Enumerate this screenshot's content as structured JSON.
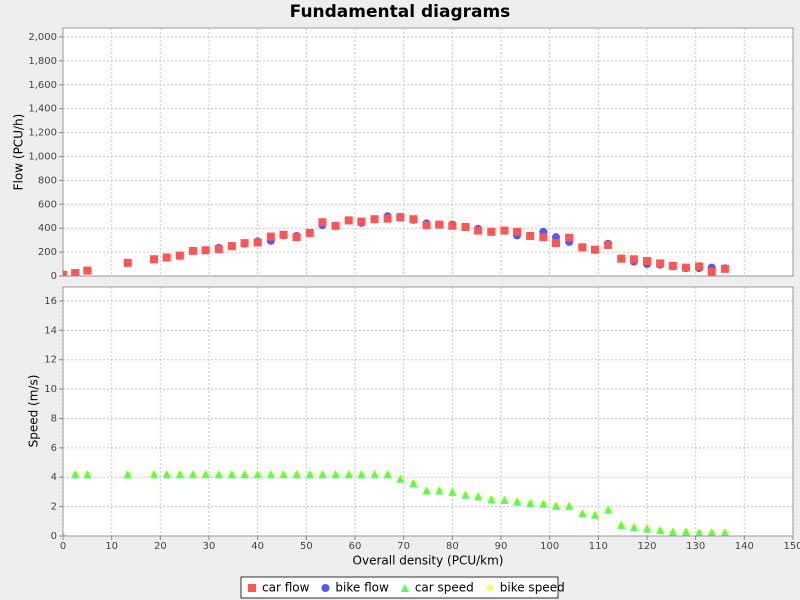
{
  "chart_data": [
    {
      "type": "scatter",
      "title": "Fundamental diagrams",
      "ylabel": "Flow (PCU/h)",
      "x": [
        0,
        2.5,
        5,
        13.3,
        18.7,
        21.3,
        24,
        26.7,
        29.3,
        32,
        34.7,
        37.3,
        40,
        42.7,
        45.3,
        48,
        50.7,
        53.3,
        56,
        58.7,
        61.3,
        64,
        66.7,
        69.3,
        72,
        74.7,
        77.3,
        80,
        82.7,
        85.3,
        88,
        90.7,
        93.3,
        96,
        98.7,
        101.3,
        104,
        106.7,
        109.3,
        112,
        114.7,
        117.3,
        120,
        122.7,
        125.3,
        128,
        130.7,
        133.3,
        136
      ],
      "xlim": [
        0,
        150
      ],
      "ylim": [
        0,
        2075
      ],
      "yticks": [
        0,
        200,
        400,
        600,
        800,
        {
          "value": 1000,
          "label": "1,000"
        },
        {
          "value": 1200,
          "label": "1,200"
        },
        {
          "value": 1400,
          "label": "1,400"
        },
        {
          "value": 1600,
          "label": "1,600"
        },
        {
          "value": 1800,
          "label": "1,800"
        },
        {
          "value": 2000,
          "label": "2,000"
        }
      ],
      "grid": true,
      "series": [
        {
          "name": "car flow",
          "color": "#ff5555",
          "marker": "square",
          "values": [
            10,
            25,
            45,
            110,
            140,
            155,
            170,
            210,
            215,
            225,
            250,
            275,
            280,
            330,
            345,
            325,
            360,
            450,
            420,
            465,
            455,
            475,
            480,
            490,
            475,
            425,
            430,
            420,
            410,
            380,
            370,
            380,
            370,
            335,
            325,
            275,
            320,
            240,
            220,
            260,
            145,
            140,
            125,
            105,
            85,
            70,
            80,
            35,
            60
          ]
        },
        {
          "name": "bike flow",
          "color": "#5555ff",
          "marker": "circle",
          "values": [
            10,
            25,
            45,
            110,
            140,
            155,
            170,
            210,
            215,
            235,
            250,
            270,
            290,
            295,
            340,
            335,
            360,
            425,
            420,
            465,
            445,
            475,
            500,
            495,
            470,
            440,
            430,
            430,
            410,
            395,
            370,
            380,
            340,
            335,
            370,
            325,
            285,
            240,
            220,
            270,
            145,
            120,
            100,
            95,
            80,
            65,
            65,
            70,
            65
          ]
        }
      ]
    },
    {
      "type": "scatter",
      "ylabel": "Speed (m/s)",
      "xlabel": "Overall density (PCU/km)",
      "x": [
        0,
        2.5,
        5,
        13.3,
        18.7,
        21.3,
        24,
        26.7,
        29.3,
        32,
        34.7,
        37.3,
        40,
        42.7,
        45.3,
        48,
        50.7,
        53.3,
        56,
        58.7,
        61.3,
        64,
        66.7,
        69.3,
        72,
        74.7,
        77.3,
        80,
        82.7,
        85.3,
        88,
        90.7,
        93.3,
        96,
        98.7,
        101.3,
        104,
        106.7,
        109.3,
        112,
        114.7,
        117.3,
        120,
        122.7,
        125.3,
        128,
        130.7,
        133.3,
        136
      ],
      "xlim": [
        0,
        150
      ],
      "ylim": [
        0,
        16.95
      ],
      "xticks": [
        0,
        10,
        20,
        30,
        40,
        50,
        60,
        70,
        80,
        90,
        100,
        110,
        120,
        130,
        140,
        150
      ],
      "yticks": [
        0,
        2,
        4,
        6,
        8,
        10,
        12,
        14,
        16
      ],
      "grid": true,
      "series": [
        {
          "name": "car speed",
          "color": "#55ff55",
          "marker": "triangle",
          "values": [
            0,
            4.2,
            4.2,
            4.2,
            4.2,
            4.2,
            4.2,
            4.2,
            4.2,
            4.2,
            4.2,
            4.2,
            4.2,
            4.2,
            4.2,
            4.2,
            4.2,
            4.2,
            4.2,
            4.2,
            4.2,
            4.2,
            4.2,
            3.9,
            3.6,
            3.1,
            3.1,
            3.0,
            2.8,
            2.7,
            2.5,
            2.45,
            2.35,
            2.25,
            2.2,
            2.05,
            2.05,
            1.55,
            1.45,
            1.8,
            0.75,
            0.6,
            0.5,
            0.4,
            0.3,
            0.3,
            0.25,
            0.25,
            0.25
          ]
        },
        {
          "name": "bike speed",
          "color": "#ffff55",
          "marker": "diamond",
          "values": [
            0,
            4.2,
            4.2,
            4.2,
            4.2,
            4.2,
            4.2,
            4.2,
            4.2,
            4.2,
            4.2,
            4.2,
            4.2,
            4.2,
            4.2,
            4.2,
            4.2,
            4.2,
            4.2,
            4.2,
            4.2,
            4.2,
            4.2,
            3.9,
            3.6,
            3.1,
            3.1,
            3.0,
            2.8,
            2.7,
            2.5,
            2.45,
            2.35,
            2.25,
            2.2,
            2.05,
            2.05,
            1.55,
            1.45,
            1.8,
            0.75,
            0.6,
            0.5,
            0.4,
            0.3,
            0.3,
            0.25,
            0.25,
            0.25
          ]
        }
      ]
    }
  ]
}
